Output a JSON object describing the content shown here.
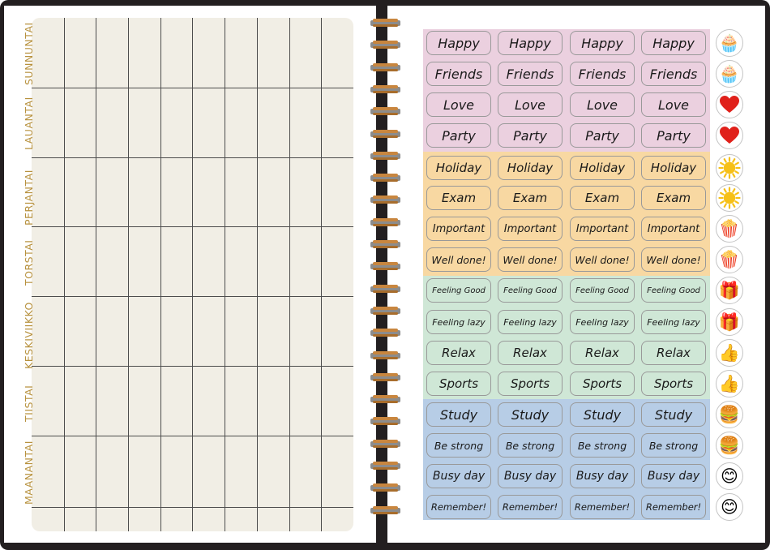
{
  "weekdays": [
    "SUNNUNTAI",
    "LAUANTAI",
    "PERJANTAI",
    "TORSTAI",
    "KESKIVIIKKO",
    "TIISTAI",
    "MAANANTAI"
  ],
  "colors": {
    "cover": "#231f20",
    "grid_panel": "#f1eee5",
    "weekday_text": "#b7913d",
    "bands": [
      "#ebd0df",
      "#f8d8a2",
      "#cfe7d6",
      "#b7cde6"
    ],
    "icon_heart": "#e0201a",
    "icon_sun": "#f6c018"
  },
  "sticker_rows": [
    {
      "label": "Happy",
      "icon": "cupcake-icon",
      "glyph": "🧁"
    },
    {
      "label": "Friends",
      "icon": "cupcake-icon",
      "glyph": "🧁"
    },
    {
      "label": "Love",
      "icon": "heart-icon",
      "glyph": ""
    },
    {
      "label": "Party",
      "icon": "heart-icon",
      "glyph": ""
    },
    {
      "label": "Holiday",
      "icon": "sun-icon",
      "glyph": ""
    },
    {
      "label": "Exam",
      "icon": "sun-icon",
      "glyph": ""
    },
    {
      "label": "Important",
      "icon": "popcorn-icon",
      "glyph": "🍿"
    },
    {
      "label": "Well done!",
      "icon": "popcorn-icon",
      "glyph": "🍿"
    },
    {
      "label": "Feeling Good",
      "icon": "gift-icon",
      "glyph": "🎁"
    },
    {
      "label": "Feeling lazy",
      "icon": "gift-icon",
      "glyph": "🎁"
    },
    {
      "label": "Relax",
      "icon": "thumbs-up-icon",
      "glyph": "👍"
    },
    {
      "label": "Sports",
      "icon": "thumbs-up-icon",
      "glyph": "👍"
    },
    {
      "label": "Study",
      "icon": "burger-icon",
      "glyph": "🍔"
    },
    {
      "label": "Be strong",
      "icon": "burger-icon",
      "glyph": "🍔"
    },
    {
      "label": "Busy day",
      "icon": "smiley-icon",
      "glyph": "😊"
    },
    {
      "label": "Remember!",
      "icon": "smiley-icon",
      "glyph": "😊"
    }
  ]
}
